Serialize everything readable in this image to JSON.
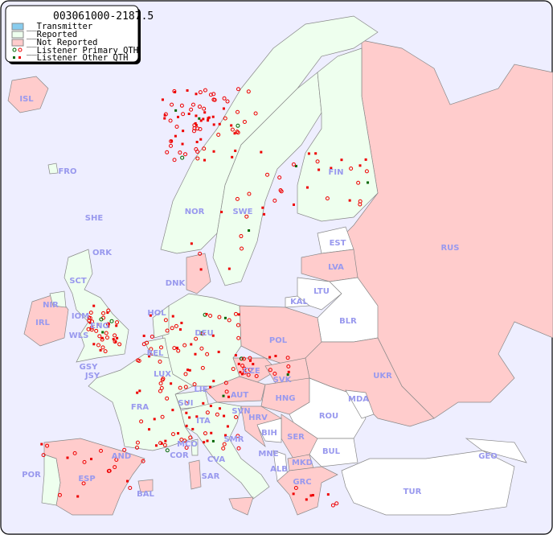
{
  "title": "003061000-2187.5",
  "legend": {
    "items": [
      {
        "label": "__Transmitter",
        "color": "#88ccee"
      },
      {
        "label": "__Reported",
        "color": "#eeffee"
      },
      {
        "label": "__Not Reported",
        "color": "#ffcccc"
      },
      {
        "label": "__Listener Primary QTH",
        "marker": "open-circle",
        "colors": [
          "#006600",
          "#ee0000"
        ]
      },
      {
        "label": "__Listener Other QTH",
        "marker": "square",
        "colors": [
          "#006600",
          "#ee0000"
        ]
      }
    ]
  },
  "colors": {
    "sea": "#eeeeff",
    "reported": "#eeffee",
    "not_reported": "#ffcccc",
    "no_data": "#ffffff",
    "label": "#9999ee",
    "listener": "#ee0000"
  },
  "countries": [
    {
      "code": "ISL",
      "status": "not_reported"
    },
    {
      "code": "FRO",
      "status": "reported"
    },
    {
      "code": "SHE",
      "status": "reported"
    },
    {
      "code": "ORK",
      "status": "reported"
    },
    {
      "code": "NOR",
      "status": "reported"
    },
    {
      "code": "SWE",
      "status": "reported"
    },
    {
      "code": "FIN",
      "status": "reported"
    },
    {
      "code": "EST",
      "status": "none"
    },
    {
      "code": "LVA",
      "status": "not_reported"
    },
    {
      "code": "LTU",
      "status": "none"
    },
    {
      "code": "KAL",
      "status": "none"
    },
    {
      "code": "BLR",
      "status": "none"
    },
    {
      "code": "RUS",
      "status": "not_reported"
    },
    {
      "code": "DNK",
      "status": "not_reported"
    },
    {
      "code": "HOL",
      "status": "reported"
    },
    {
      "code": "BEL",
      "status": "reported"
    },
    {
      "code": "DEU",
      "status": "reported"
    },
    {
      "code": "POL",
      "status": "not_reported"
    },
    {
      "code": "UKR",
      "status": "not_reported"
    },
    {
      "code": "IRL",
      "status": "not_reported"
    },
    {
      "code": "NIR",
      "status": "reported"
    },
    {
      "code": "SCT",
      "status": "reported"
    },
    {
      "code": "IOM",
      "status": "reported"
    },
    {
      "code": "WLS",
      "status": "reported"
    },
    {
      "code": "ENG",
      "status": "reported"
    },
    {
      "code": "GSY",
      "status": "reported"
    },
    {
      "code": "JSY",
      "status": "reported"
    },
    {
      "code": "LUX",
      "status": "reported"
    },
    {
      "code": "FRA",
      "status": "reported"
    },
    {
      "code": "CZE",
      "status": "not_reported"
    },
    {
      "code": "SVK",
      "status": "not_reported"
    },
    {
      "code": "AUT",
      "status": "not_reported"
    },
    {
      "code": "HNG",
      "status": "not_reported"
    },
    {
      "code": "SUI",
      "status": "reported"
    },
    {
      "code": "LIE",
      "status": "reported"
    },
    {
      "code": "SVN",
      "status": "reported"
    },
    {
      "code": "HRV",
      "status": "not_reported"
    },
    {
      "code": "ITA",
      "status": "reported"
    },
    {
      "code": "BIH",
      "status": "none"
    },
    {
      "code": "SER",
      "status": "not_reported"
    },
    {
      "code": "ROU",
      "status": "none"
    },
    {
      "code": "MDA",
      "status": "none"
    },
    {
      "code": "BUL",
      "status": "none"
    },
    {
      "code": "MNE",
      "status": "none"
    },
    {
      "code": "ALB",
      "status": "none"
    },
    {
      "code": "MKD",
      "status": "not_reported"
    },
    {
      "code": "GRC",
      "status": "not_reported"
    },
    {
      "code": "TUR",
      "status": "none"
    },
    {
      "code": "GEO",
      "status": "none"
    },
    {
      "code": "SMR",
      "status": "reported"
    },
    {
      "code": "MCO",
      "status": "reported"
    },
    {
      "code": "COR",
      "status": "reported"
    },
    {
      "code": "CVA",
      "status": "reported"
    },
    {
      "code": "SAR",
      "status": "not_reported"
    },
    {
      "code": "AND",
      "status": "not_reported"
    },
    {
      "code": "POR",
      "status": "reported"
    },
    {
      "code": "ESP",
      "status": "not_reported"
    },
    {
      "code": "BAL",
      "status": "not_reported"
    }
  ]
}
